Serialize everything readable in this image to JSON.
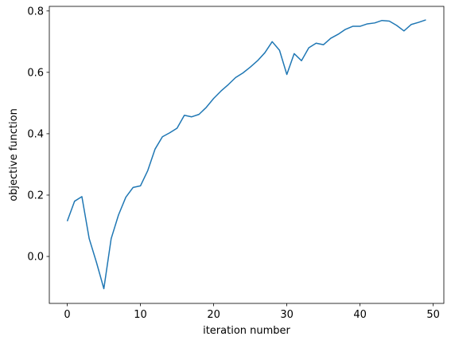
{
  "chart_data": {
    "type": "line",
    "xlabel": "iteration number",
    "ylabel": "objective function",
    "x": [
      0,
      1,
      2,
      3,
      4,
      5,
      6,
      7,
      8,
      9,
      10,
      11,
      12,
      13,
      14,
      15,
      16,
      17,
      18,
      19,
      20,
      21,
      22,
      23,
      24,
      25,
      26,
      27,
      28,
      29,
      30,
      31,
      32,
      33,
      34,
      35,
      36,
      37,
      38,
      39,
      40,
      41,
      42,
      43,
      44,
      45,
      46,
      47,
      48,
      49
    ],
    "series": [
      {
        "color": "#1f77b4",
        "values": [
          0.115,
          0.18,
          0.195,
          0.058,
          -0.02,
          -0.105,
          0.058,
          0.135,
          0.193,
          0.225,
          0.23,
          0.28,
          0.35,
          0.39,
          0.403,
          0.418,
          0.46,
          0.455,
          0.463,
          0.486,
          0.515,
          0.539,
          0.56,
          0.583,
          0.598,
          0.617,
          0.638,
          0.664,
          0.7,
          0.672,
          0.593,
          0.661,
          0.638,
          0.68,
          0.695,
          0.69,
          0.711,
          0.724,
          0.74,
          0.75,
          0.75,
          0.758,
          0.761,
          0.769,
          0.767,
          0.753,
          0.735,
          0.756,
          0.763,
          0.771
        ]
      }
    ],
    "xlim": [
      -2.45,
      51.45
    ],
    "xticks": [
      0,
      10,
      20,
      30,
      40,
      50
    ],
    "ylim": [
      -0.153,
      0.815
    ],
    "yticks": [
      {
        "value": 0,
        "label": "0.0"
      },
      0.2,
      0.4,
      0.6,
      0.8
    ]
  }
}
